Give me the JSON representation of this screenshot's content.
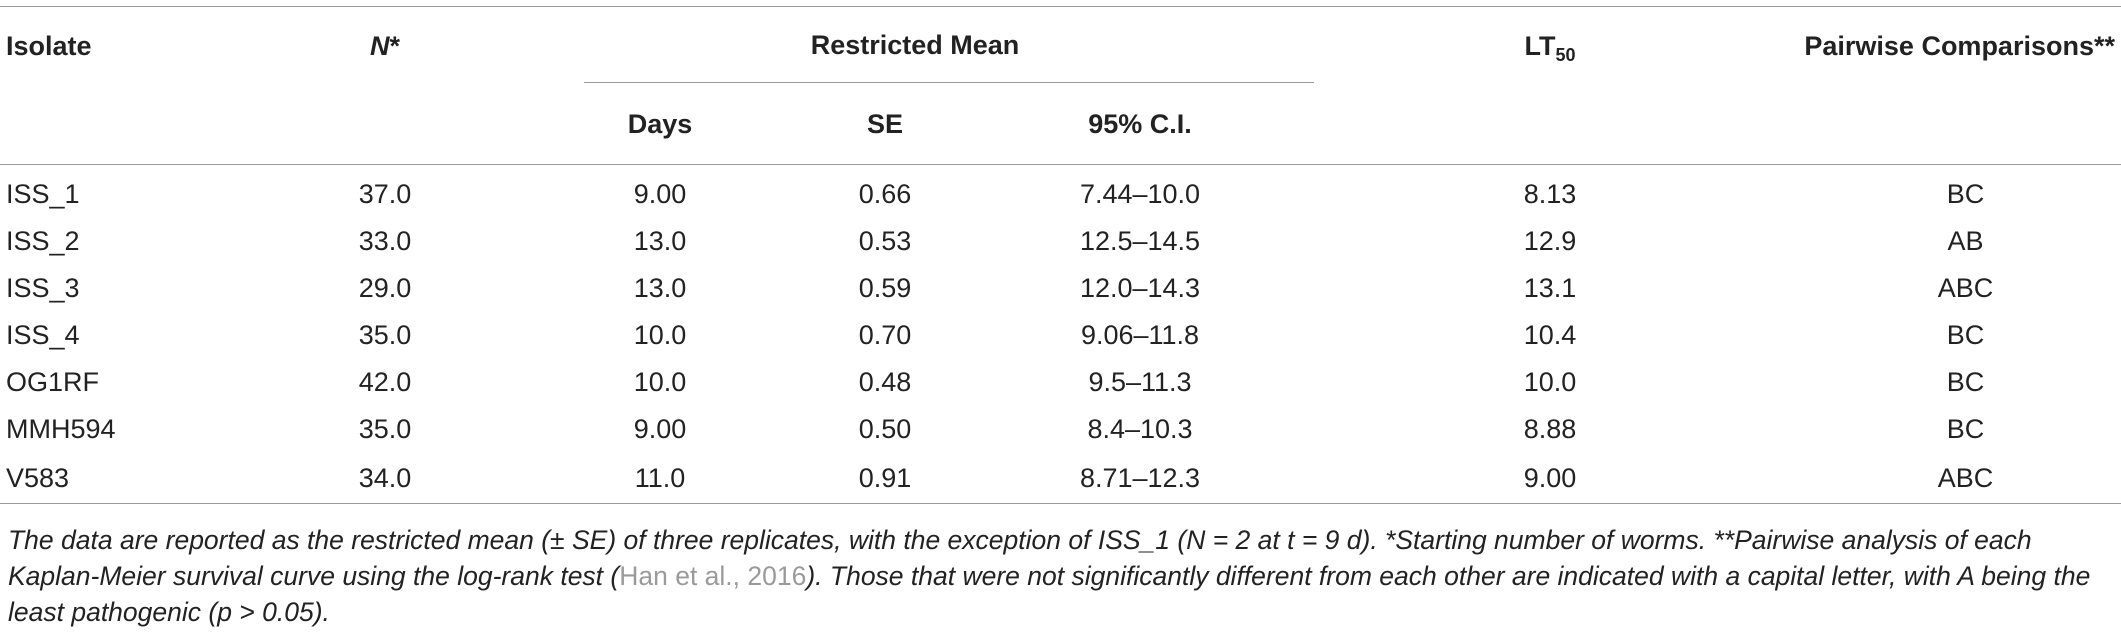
{
  "table": {
    "headers": {
      "isolate": "Isolate",
      "n": "N",
      "n_marker": "*",
      "restricted_mean": "Restricted Mean",
      "days": "Days",
      "se": "SE",
      "ci": "95% C.I.",
      "lt_main": "LT",
      "lt_sub": "50",
      "pairwise": "Pairwise Comparisons**"
    },
    "rows": [
      {
        "isolate": "ISS_1",
        "n": "37.0",
        "days": "9.00",
        "se": "0.66",
        "ci": "7.44–10.0",
        "lt50": "8.13",
        "pairwise": "BC"
      },
      {
        "isolate": "ISS_2",
        "n": "33.0",
        "days": "13.0",
        "se": "0.53",
        "ci": "12.5–14.5",
        "lt50": "12.9",
        "pairwise": "AB"
      },
      {
        "isolate": "ISS_3",
        "n": "29.0",
        "days": "13.0",
        "se": "0.59",
        "ci": "12.0–14.3",
        "lt50": "13.1",
        "pairwise": "ABC"
      },
      {
        "isolate": "ISS_4",
        "n": "35.0",
        "days": "10.0",
        "se": "0.70",
        "ci": "9.06–11.8",
        "lt50": "10.4",
        "pairwise": "BC"
      },
      {
        "isolate": "OG1RF",
        "n": "42.0",
        "days": "10.0",
        "se": "0.48",
        "ci": "9.5–11.3",
        "lt50": "10.0",
        "pairwise": "BC"
      },
      {
        "isolate": "MMH594",
        "n": "35.0",
        "days": "9.00",
        "se": "0.50",
        "ci": "8.4–10.3",
        "lt50": "8.88",
        "pairwise": "BC"
      },
      {
        "isolate": "V583",
        "n": "34.0",
        "days": "11.0",
        "se": "0.91",
        "ci": "8.71–12.3",
        "lt50": "9.00",
        "pairwise": "ABC"
      }
    ]
  },
  "footnote": {
    "part1": "The data are reported as the restricted mean (± SE) of three replicates, with the exception of ISS_1 (N = 2 at t = 9 d). *Starting number of worms. **Pairwise analysis of each Kaplan-Meier survival curve using the log-rank test (",
    "citation": "Han et al., 2016",
    "part2": "). Those that were not significantly different from each other are indicated with a capital letter, with A being the least pathogenic (p > 0.05)."
  },
  "colors": {
    "text": "#222222",
    "rule": "#9a9a9a",
    "citation": "#9a9a9a"
  }
}
